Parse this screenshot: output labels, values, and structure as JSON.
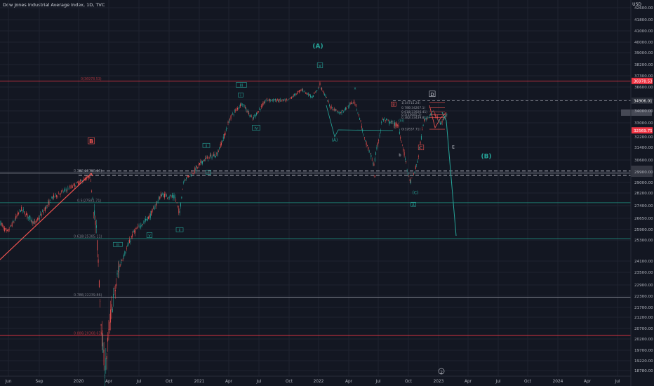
{
  "header": {
    "title": "Dow Jones Industrial Average Index, 1D, TVC",
    "currency": "USD"
  },
  "colors": {
    "background": "#131722",
    "up": "#26a69a",
    "down": "#ef5350",
    "red_level": "#f23645",
    "teal_level": "#1e8c7e",
    "fib_text": "#787b86"
  },
  "chart_data": {
    "type": "candlestick",
    "x_ticks": [
      "Jun",
      "Sep",
      "2020",
      "Apr",
      "Jul",
      "Oct",
      "2021",
      "Apr",
      "Jul",
      "Oct",
      "2022",
      "Apr",
      "Jul",
      "Oct",
      "2023",
      "Apr",
      "Jul",
      "Oct",
      "2024",
      "Apr",
      "Jul"
    ],
    "y_ticks": [
      "42600.00",
      "41800.00",
      "41000.00",
      "40000.00",
      "39000.00",
      "38200.00",
      "37300.00",
      "36600.00",
      "35000.00",
      "34000.00",
      "33000.00",
      "32200.00",
      "31400.00",
      "30600.00",
      "29900.00",
      "29000.00",
      "28200.00",
      "27400.00",
      "26650.00",
      "25900.00",
      "25300.00",
      "24100.00",
      "23500.00",
      "22900.00",
      "22300.00",
      "21700.00",
      "21200.00",
      "20700.00",
      "20200.00",
      "19700.00",
      "19220.00",
      "18780.00"
    ],
    "price_labels": [
      {
        "text": "36978.53",
        "value": 36978.53,
        "color": "#f23645"
      },
      {
        "text": "34906.01",
        "value": 34906.01,
        "color": "#b2b5be"
      },
      {
        "text": "32569.75",
        "value": 32569.75,
        "color": "#f23645"
      }
    ],
    "horizontal_levels": [
      {
        "label": "0(36978.53)",
        "value": 36978.53,
        "color": "#f23645"
      },
      {
        "label": "0.382(29798.96)",
        "value": 29798.96,
        "color": "#d1d4dc"
      },
      {
        "label": "0.5(27581.71)",
        "value": 27581.71,
        "color": "#1e8c7e"
      },
      {
        "label": "0.618(25385.11)",
        "value": 25385.11,
        "color": "#1e8c7e"
      },
      {
        "label": "0.786(22239.86)",
        "value": 22239.86,
        "color": "#b2b5be"
      },
      {
        "label": "0.886(20368.63)",
        "value": 20368.63,
        "color": "#f23645"
      }
    ],
    "upper_fibs": [
      {
        "label": "1(34715.24)",
        "value": 34715.24
      },
      {
        "label": "0.786(34267.1)",
        "value": 34267.1
      },
      {
        "label": "0.618(33926.41)",
        "value": 33926.41
      },
      {
        "label": "0.5(33685.2)",
        "value": 33685.2
      },
      {
        "label": "0.382(33439.8)",
        "value": 33439.8
      },
      {
        "label": "0(32637.71)",
        "value": 32637.71
      }
    ],
    "wave_labels": [
      {
        "text": "(A)",
        "color": "#26a69a"
      },
      {
        "text": "(B)",
        "color": "#26a69a"
      },
      {
        "text": "B",
        "color": "#ef5350"
      },
      {
        "text": "v",
        "color": "#26a69a"
      },
      {
        "text": "iii",
        "color": "#26a69a"
      },
      {
        "text": "iv",
        "color": "#26a69a"
      },
      {
        "text": "ii",
        "color": "#26a69a"
      },
      {
        "text": "i",
        "color": "#26a69a"
      },
      {
        "text": "iii",
        "color": "#26a69a"
      },
      {
        "text": "v",
        "color": "#26a69a"
      },
      {
        "text": "ii",
        "color": "#26a69a"
      },
      {
        "text": "i",
        "color": "#26a69a"
      },
      {
        "text": "(A)",
        "color": "#26a69a"
      },
      {
        "text": "(C)",
        "color": "#26a69a"
      },
      {
        "text": "A",
        "color": "#26a69a"
      },
      {
        "text": "D",
        "color": "#d1d4dc"
      },
      {
        "text": "C",
        "color": "#ef5350"
      },
      {
        "text": "E",
        "color": "#d1d4dc"
      },
      {
        "text": "B",
        "color": "#ef5350"
      },
      {
        "text": "(iii)",
        "color": "#26a69a"
      },
      {
        "text": "b",
        "color": "#d1d4dc"
      },
      {
        "text": "a",
        "color": "#ef5350"
      },
      {
        "text": "x",
        "color": "#26a69a"
      },
      {
        "text": "2",
        "color": "#b2b5be"
      }
    ]
  }
}
